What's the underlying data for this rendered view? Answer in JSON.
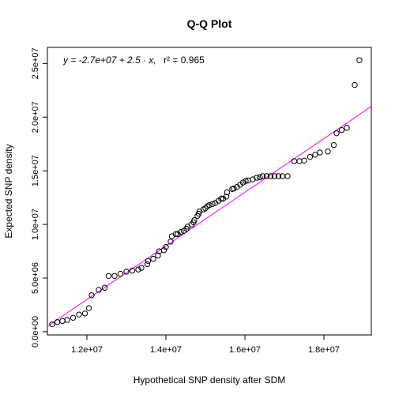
{
  "chart_data": {
    "type": "scatter",
    "title": "Q-Q Plot",
    "xlabel": "Hypothetical SNP density after SDM",
    "ylabel": "Expected SNP density",
    "xlim": [
      11000000,
      19200000
    ],
    "ylim": [
      -300000,
      26500000
    ],
    "xticks": [
      12000000,
      14000000,
      16000000,
      18000000
    ],
    "xtick_labels": [
      "1.2e+07",
      "1.4e+07",
      "1.6e+07",
      "1.8e+07"
    ],
    "yticks": [
      0,
      5000000,
      10000000,
      15000000,
      20000000,
      25000000
    ],
    "ytick_labels": [
      "0.0e+00",
      "5.0e+06",
      "1.0e+07",
      "1.5e+07",
      "2.0e+07",
      "2.5e+07"
    ],
    "annotation": {
      "y_eq": "y = -2.7e+07 + 2.5 · x,",
      "r2": "r² = 0.965"
    },
    "fit_line": {
      "intercept": -27000000,
      "slope": 2.5,
      "color": "#ff00ff"
    },
    "point_color": "#000000",
    "points": [
      [
        11120000,
        700000
      ],
      [
        11250000,
        900000
      ],
      [
        11380000,
        1000000
      ],
      [
        11500000,
        1100000
      ],
      [
        11650000,
        1300000
      ],
      [
        11800000,
        1600000
      ],
      [
        11950000,
        1700000
      ],
      [
        12050000,
        2200000
      ],
      [
        12120000,
        3400000
      ],
      [
        12300000,
        3900000
      ],
      [
        12450000,
        4100000
      ],
      [
        12550000,
        5200000
      ],
      [
        12700000,
        5200000
      ],
      [
        12850000,
        5400000
      ],
      [
        13000000,
        5600000
      ],
      [
        13150000,
        5700000
      ],
      [
        13300000,
        5800000
      ],
      [
        13380000,
        5950000
      ],
      [
        13530000,
        6300000
      ],
      [
        13550000,
        6600000
      ],
      [
        13680000,
        6800000
      ],
      [
        13800000,
        7100000
      ],
      [
        13830000,
        7500000
      ],
      [
        13950000,
        7600000
      ],
      [
        14000000,
        7900000
      ],
      [
        14120000,
        8400000
      ],
      [
        14150000,
        8900000
      ],
      [
        14250000,
        9100000
      ],
      [
        14300000,
        9100000
      ],
      [
        14380000,
        9300000
      ],
      [
        14450000,
        9400000
      ],
      [
        14520000,
        9600000
      ],
      [
        14550000,
        9800000
      ],
      [
        14650000,
        10000000
      ],
      [
        14700000,
        10200000
      ],
      [
        14720000,
        10400000
      ],
      [
        14800000,
        10800000
      ],
      [
        14830000,
        11000000
      ],
      [
        14850000,
        11200000
      ],
      [
        14950000,
        11400000
      ],
      [
        15000000,
        11500000
      ],
      [
        15050000,
        11700000
      ],
      [
        15100000,
        11800000
      ],
      [
        15180000,
        11900000
      ],
      [
        15250000,
        12000000
      ],
      [
        15330000,
        12200000
      ],
      [
        15400000,
        12400000
      ],
      [
        15450000,
        12400000
      ],
      [
        15530000,
        12600000
      ],
      [
        15550000,
        13000000
      ],
      [
        15680000,
        13300000
      ],
      [
        15720000,
        13350000
      ],
      [
        15800000,
        13500000
      ],
      [
        15880000,
        13700000
      ],
      [
        15950000,
        13900000
      ],
      [
        16020000,
        14050000
      ],
      [
        16080000,
        14100000
      ],
      [
        16200000,
        14200000
      ],
      [
        16300000,
        14350000
      ],
      [
        16380000,
        14400000
      ],
      [
        16450000,
        14500000
      ],
      [
        16550000,
        14500000
      ],
      [
        16650000,
        14500000
      ],
      [
        16750000,
        14500000
      ],
      [
        16850000,
        14500000
      ],
      [
        16950000,
        14500000
      ],
      [
        17080000,
        14500000
      ],
      [
        17250000,
        15900000
      ],
      [
        17380000,
        15900000
      ],
      [
        17500000,
        15950000
      ],
      [
        17650000,
        16300000
      ],
      [
        17780000,
        16500000
      ],
      [
        17900000,
        16700000
      ],
      [
        18100000,
        16800000
      ],
      [
        18250000,
        17400000
      ],
      [
        18320000,
        18500000
      ],
      [
        18450000,
        18800000
      ],
      [
        18580000,
        19000000
      ],
      [
        18780000,
        23000000
      ],
      [
        18900000,
        25300000
      ]
    ]
  }
}
